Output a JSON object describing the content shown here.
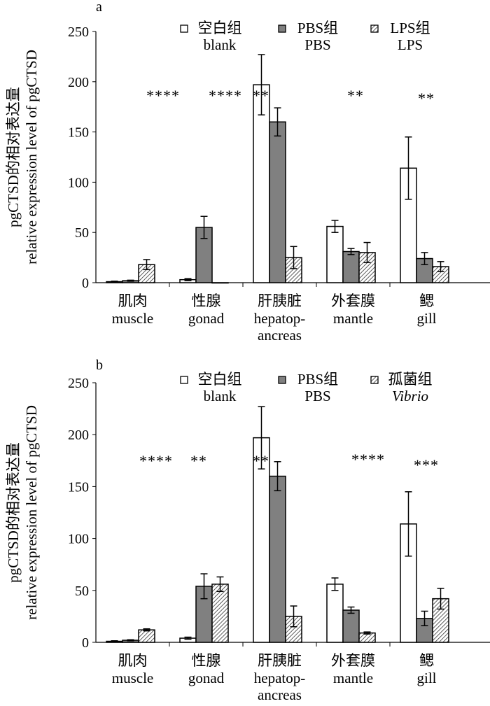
{
  "chart_data": [
    {
      "type": "bar",
      "panel_label": "a",
      "ylim": [
        0,
        250
      ],
      "yticks": [
        0,
        50,
        100,
        150,
        200,
        250
      ],
      "ylabel_cn": "pgCTSD的相对表达量",
      "ylabel_en": "relative expression level of pgCTSD",
      "categories": [
        {
          "cn": "肌肉",
          "en": "muscle"
        },
        {
          "cn": "性腺",
          "en": "gonad"
        },
        {
          "cn": "肝胰脏",
          "en": "hepatop-",
          "en2": "ancreas"
        },
        {
          "cn": "外套膜",
          "en": "mantle"
        },
        {
          "cn": "鳃",
          "en": "gill"
        }
      ],
      "series": [
        {
          "name_cn": "空白组",
          "name": "blank",
          "fill": "#ffffff",
          "values": [
            1,
            3,
            197,
            56,
            114
          ],
          "errors": [
            0.5,
            1,
            30,
            6,
            31
          ]
        },
        {
          "name_cn": "PBS组",
          "name": "PBS",
          "fill": "#808080",
          "values": [
            2,
            55,
            160,
            31,
            24
          ],
          "errors": [
            0.5,
            11,
            14,
            3,
            6
          ]
        },
        {
          "name_cn": "LPS组",
          "name": "LPS",
          "fill": "hatch",
          "values": [
            18,
            0,
            25,
            30,
            16
          ],
          "errors": [
            5,
            0,
            11,
            10,
            5
          ]
        }
      ],
      "significance": [
        "****",
        "****",
        "**",
        "**",
        "**"
      ],
      "legend_position": "top",
      "grid": false
    },
    {
      "type": "bar",
      "panel_label": "b",
      "ylim": [
        0,
        250
      ],
      "yticks": [
        0,
        50,
        100,
        150,
        200,
        250
      ],
      "ylabel_cn": "pgCTSD的相对表达量",
      "ylabel_en": "relative expression level of pgCTSD",
      "categories": [
        {
          "cn": "肌肉",
          "en": "muscle"
        },
        {
          "cn": "性腺",
          "en": "gonad"
        },
        {
          "cn": "肝胰脏",
          "en": "hepatop-",
          "en2": "ancreas"
        },
        {
          "cn": "外套膜",
          "en": "mantle"
        },
        {
          "cn": "鳃",
          "en": "gill"
        }
      ],
      "series": [
        {
          "name_cn": "空白组",
          "name": "blank",
          "fill": "#ffffff",
          "values": [
            1,
            4,
            197,
            56,
            114
          ],
          "errors": [
            0.5,
            1,
            30,
            6,
            31
          ]
        },
        {
          "name_cn": "PBS组",
          "name": "PBS",
          "fill": "#808080",
          "values": [
            2,
            54,
            160,
            31,
            23
          ],
          "errors": [
            0.5,
            12,
            14,
            3,
            7
          ]
        },
        {
          "name_cn": "孤菌组",
          "name": "Vibrio",
          "fill": "hatch",
          "values": [
            12,
            56,
            25,
            9,
            42
          ],
          "errors": [
            1,
            7,
            10,
            1,
            10
          ]
        }
      ],
      "significance": [
        "****",
        "**",
        "**",
        "****",
        "***"
      ],
      "legend_position": "top",
      "grid": false
    }
  ]
}
